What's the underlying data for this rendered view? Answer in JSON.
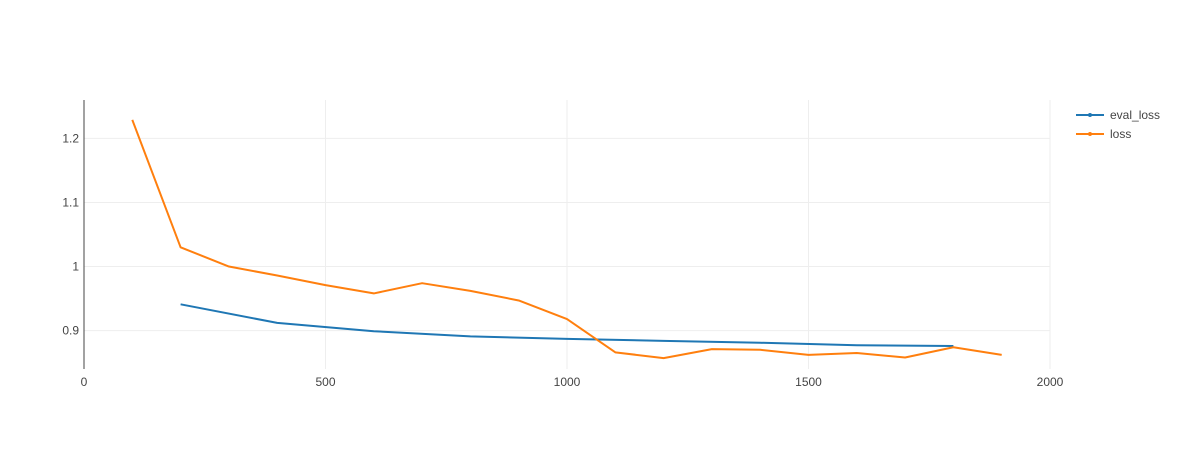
{
  "chart_data": {
    "type": "line",
    "title": "",
    "xlabel": "",
    "ylabel": "",
    "xlim": [
      0,
      2000
    ],
    "ylim": [
      0.84,
      1.26
    ],
    "x_ticks": [
      0,
      500,
      1000,
      1500,
      2000
    ],
    "x_tick_labels": [
      "0",
      "500",
      "1000",
      "1500",
      "2000"
    ],
    "y_ticks": [
      0.9,
      1.0,
      1.1,
      1.2
    ],
    "y_tick_labels": [
      "0.9",
      "1",
      "1.1",
      "1.2"
    ],
    "grid": true,
    "legend_position": "top-right",
    "series": [
      {
        "name": "eval_loss",
        "color": "#1f77b4",
        "x": [
          200,
          400,
          600,
          800,
          1000,
          1200,
          1400,
          1600,
          1800
        ],
        "y": [
          0.941,
          0.912,
          0.899,
          0.891,
          0.887,
          0.884,
          0.881,
          0.877,
          0.876
        ]
      },
      {
        "name": "loss",
        "color": "#ff7f0e",
        "x": [
          100,
          200,
          300,
          400,
          500,
          600,
          700,
          800,
          900,
          1000,
          1100,
          1200,
          1300,
          1400,
          1500,
          1600,
          1700,
          1800,
          1900
        ],
        "y": [
          1.229,
          1.03,
          1.0,
          0.986,
          0.971,
          0.958,
          0.974,
          0.962,
          0.947,
          0.918,
          0.866,
          0.857,
          0.871,
          0.87,
          0.862,
          0.865,
          0.858,
          0.874,
          0.862
        ]
      }
    ]
  }
}
